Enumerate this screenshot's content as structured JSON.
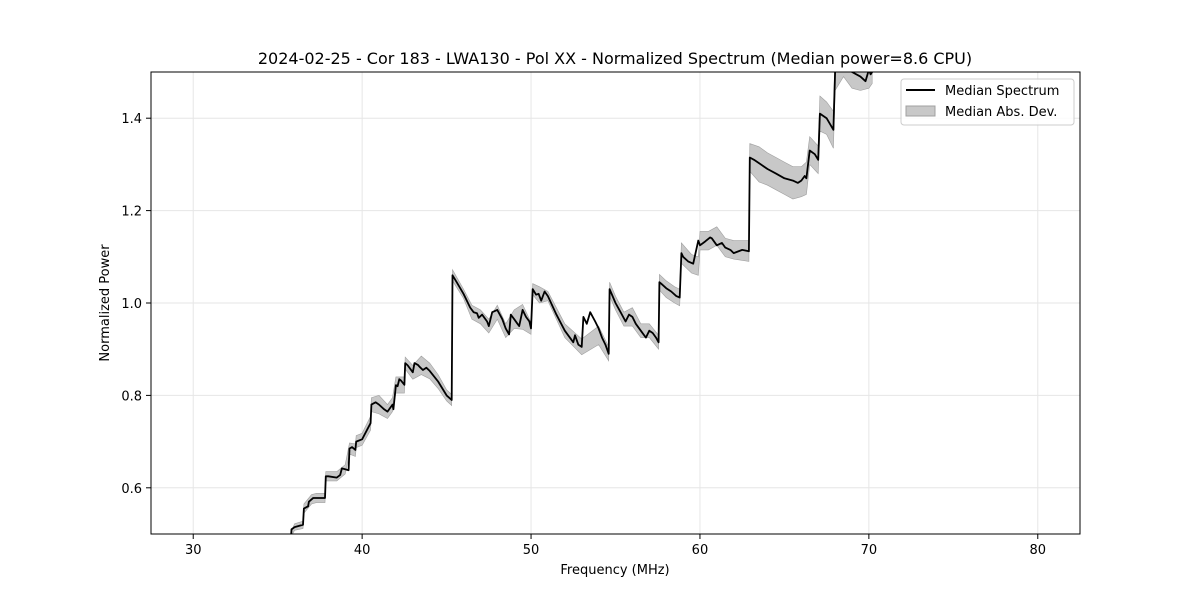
{
  "chart_data": {
    "type": "line",
    "title": "2024-02-25 - Cor 183 - LWA130 - Pol XX - Normalized Spectrum (Median power=8.6 CPU)",
    "xlabel": "Frequency (MHz)",
    "ylabel": "Normalized Power",
    "xlim": [
      27.5,
      82.5
    ],
    "ylim": [
      0.5,
      1.5
    ],
    "xticks": [
      30,
      40,
      50,
      60,
      70,
      80
    ],
    "yticks": [
      0.6,
      0.8,
      1.0,
      1.2,
      1.4
    ],
    "xtick_labels": [
      "30",
      "40",
      "50",
      "60",
      "70",
      "80"
    ],
    "ytick_labels": [
      "0.6",
      "0.8",
      "1.0",
      "1.2",
      "1.4"
    ],
    "grid": true,
    "legend_position": "top-right",
    "legend": [
      "Median Spectrum",
      "Median Abs. Dev."
    ],
    "colors": {
      "line": "#000000",
      "band": "#c8c8c8",
      "band_edge": "#a0a0a0",
      "grid": "#e6e6e6"
    },
    "series": [
      {
        "name": "Median Spectrum",
        "x": [
          35.8,
          35.82,
          36.0,
          36.5,
          36.55,
          36.8,
          36.85,
          37.0,
          37.1,
          37.3,
          37.8,
          37.85,
          38.0,
          38.5,
          38.7,
          38.8,
          39.0,
          39.2,
          39.25,
          39.4,
          39.6,
          39.65,
          40.0,
          40.5,
          40.55,
          40.8,
          41.0,
          41.3,
          41.5,
          41.8,
          41.85,
          42.0,
          42.1,
          42.2,
          42.3,
          42.5,
          42.55,
          42.7,
          43.0,
          43.1,
          43.3,
          43.4,
          43.6,
          43.8,
          44.0,
          44.5,
          45.0,
          45.3,
          45.35,
          45.6,
          46.0,
          46.4,
          46.6,
          46.8,
          46.9,
          47.1,
          47.4,
          47.5,
          47.7,
          48.0,
          48.3,
          48.5,
          48.7,
          48.8,
          49.0,
          49.2,
          49.3,
          49.5,
          49.7,
          49.9,
          50.0,
          50.1,
          50.3,
          50.45,
          50.6,
          50.8,
          51.0,
          51.5,
          52.0,
          52.5,
          52.6,
          52.8,
          53.0,
          53.1,
          53.3,
          53.5,
          53.8,
          54.0,
          54.2,
          54.4,
          54.6,
          54.65,
          55.0,
          55.3,
          55.6,
          55.8,
          56.0,
          56.2,
          56.5,
          56.8,
          57.0,
          57.2,
          57.4,
          57.55,
          57.6,
          57.7,
          58.0,
          58.3,
          58.6,
          58.8,
          58.9,
          59.0,
          59.3,
          59.6,
          59.9,
          60.0,
          60.3,
          60.6,
          60.7,
          61.0,
          61.3,
          61.5,
          61.8,
          62.0,
          62.5,
          62.9,
          62.95,
          63.2,
          63.6,
          64.0,
          64.5,
          65.0,
          65.5,
          65.8,
          66.0,
          66.2,
          66.3,
          66.5,
          66.8,
          67.0,
          67.1,
          67.5,
          67.9,
          68.0,
          68.1,
          68.5,
          69.0,
          69.5,
          69.8,
          70.0,
          70.1,
          70.2
        ],
        "y": [
          0.5,
          0.51,
          0.515,
          0.52,
          0.555,
          0.56,
          0.57,
          0.575,
          0.578,
          0.578,
          0.578,
          0.625,
          0.625,
          0.622,
          0.628,
          0.642,
          0.64,
          0.638,
          0.685,
          0.688,
          0.682,
          0.7,
          0.705,
          0.74,
          0.78,
          0.785,
          0.78,
          0.77,
          0.765,
          0.78,
          0.77,
          0.822,
          0.82,
          0.835,
          0.832,
          0.823,
          0.87,
          0.865,
          0.85,
          0.87,
          0.866,
          0.862,
          0.855,
          0.86,
          0.853,
          0.83,
          0.8,
          0.79,
          1.06,
          1.045,
          1.02,
          0.99,
          0.98,
          0.978,
          0.968,
          0.975,
          0.96,
          0.95,
          0.98,
          0.985,
          0.965,
          0.945,
          0.932,
          0.975,
          0.965,
          0.955,
          0.95,
          0.985,
          0.97,
          0.96,
          0.945,
          1.03,
          1.018,
          1.02,
          1.005,
          1.025,
          1.015,
          0.975,
          0.94,
          0.915,
          0.93,
          0.91,
          0.905,
          0.97,
          0.955,
          0.98,
          0.96,
          0.945,
          0.925,
          0.91,
          0.89,
          1.03,
          1.0,
          0.98,
          0.96,
          0.975,
          0.97,
          0.955,
          0.94,
          0.925,
          0.94,
          0.935,
          0.925,
          0.915,
          1.045,
          1.042,
          1.032,
          1.025,
          1.015,
          1.012,
          1.108,
          1.1,
          1.09,
          1.085,
          1.135,
          1.125,
          1.133,
          1.142,
          1.14,
          1.125,
          1.13,
          1.12,
          1.115,
          1.108,
          1.115,
          1.112,
          1.315,
          1.31,
          1.3,
          1.29,
          1.28,
          1.27,
          1.265,
          1.26,
          1.265,
          1.275,
          1.27,
          1.33,
          1.322,
          1.31,
          1.41,
          1.4,
          1.375,
          1.5,
          1.52,
          1.515,
          1.5,
          1.49,
          1.48,
          1.505,
          1.495,
          1.5
        ]
      },
      {
        "name": "Median Abs. Dev.",
        "x": [
          35.8,
          36.0,
          36.5,
          36.55,
          37.0,
          37.3,
          37.8,
          37.85,
          38.5,
          39.0,
          39.25,
          39.6,
          39.65,
          40.0,
          40.5,
          40.55,
          41.0,
          41.5,
          41.8,
          42.0,
          42.5,
          42.55,
          43.0,
          43.5,
          44.0,
          44.5,
          45.0,
          45.3,
          45.35,
          46.0,
          46.5,
          47.0,
          47.5,
          48.0,
          48.5,
          49.0,
          49.5,
          50.0,
          50.1,
          50.5,
          51.0,
          52.0,
          53.0,
          54.0,
          54.6,
          54.65,
          55.0,
          55.5,
          56.0,
          56.5,
          57.0,
          57.55,
          57.6,
          58.0,
          58.5,
          58.8,
          58.9,
          59.5,
          59.9,
          60.0,
          60.5,
          61.0,
          61.5,
          62.0,
          62.9,
          62.95,
          63.5,
          64.0,
          64.5,
          65.0,
          65.5,
          66.0,
          66.3,
          66.5,
          67.0,
          67.1,
          67.5,
          67.9,
          68.0,
          68.5,
          69.0,
          69.5,
          70.0,
          70.2
        ],
        "upper": [
          0.505,
          0.522,
          0.528,
          0.565,
          0.585,
          0.588,
          0.588,
          0.635,
          0.635,
          0.65,
          0.697,
          0.695,
          0.713,
          0.718,
          0.755,
          0.795,
          0.8,
          0.78,
          0.795,
          0.84,
          0.84,
          0.883,
          0.865,
          0.885,
          0.87,
          0.845,
          0.812,
          0.802,
          1.072,
          1.03,
          0.995,
          0.985,
          0.965,
          0.995,
          0.955,
          0.985,
          0.997,
          0.958,
          1.042,
          1.035,
          1.025,
          0.955,
          0.922,
          0.95,
          0.905,
          1.045,
          1.015,
          0.98,
          0.99,
          0.955,
          0.955,
          0.93,
          1.062,
          1.048,
          1.035,
          1.03,
          1.13,
          1.105,
          1.1,
          1.155,
          1.155,
          1.165,
          1.14,
          1.135,
          1.135,
          1.345,
          1.338,
          1.325,
          1.315,
          1.305,
          1.295,
          1.295,
          1.305,
          1.36,
          1.34,
          1.448,
          1.435,
          1.415,
          1.54,
          1.55,
          1.535,
          1.52,
          1.525,
          1.525
        ],
        "lower": [
          0.495,
          0.508,
          0.512,
          0.545,
          0.565,
          0.568,
          0.568,
          0.615,
          0.615,
          0.63,
          0.673,
          0.668,
          0.687,
          0.692,
          0.725,
          0.765,
          0.76,
          0.75,
          0.765,
          0.805,
          0.805,
          0.857,
          0.835,
          0.845,
          0.836,
          0.815,
          0.788,
          0.778,
          1.048,
          1.01,
          0.965,
          0.955,
          0.935,
          0.965,
          0.925,
          0.945,
          0.943,
          0.932,
          1.018,
          1.0,
          1.005,
          0.925,
          0.888,
          0.91,
          0.875,
          1.015,
          0.985,
          0.95,
          0.95,
          0.925,
          0.925,
          0.9,
          1.028,
          1.012,
          1.0,
          0.994,
          1.086,
          1.065,
          1.06,
          1.115,
          1.115,
          1.125,
          1.1,
          1.095,
          1.09,
          1.285,
          1.262,
          1.255,
          1.245,
          1.235,
          1.225,
          1.23,
          1.235,
          1.3,
          1.28,
          1.372,
          1.365,
          1.335,
          1.46,
          1.49,
          1.465,
          1.46,
          1.465,
          1.475
        ]
      }
    ]
  }
}
